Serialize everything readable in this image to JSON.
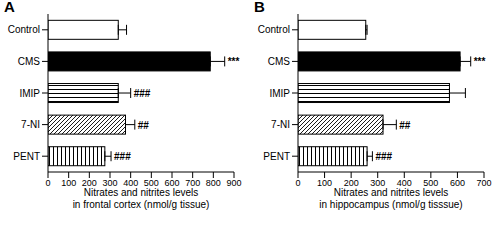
{
  "chart_data": [
    {
      "type": "bar",
      "orientation": "horizontal",
      "title": "A",
      "categories": [
        "Control",
        "CMS",
        "IMIP",
        "7-NI",
        "PENT"
      ],
      "values": [
        340,
        785,
        340,
        375,
        275
      ],
      "errors": [
        40,
        70,
        60,
        45,
        30
      ],
      "annotations": [
        null,
        "***",
        "###",
        "##",
        "###"
      ],
      "colors": [
        "#ffffff",
        "#000000",
        "#ffffff",
        "#ffffff",
        "#ffffff"
      ],
      "xlabel": "Nitrates and nitrites levels\nin frontal cortex (nmol/g tissue)",
      "xlim": [
        0,
        900
      ],
      "xticks": [
        0,
        100,
        200,
        300,
        400,
        500,
        600,
        700,
        800,
        900
      ]
    },
    {
      "type": "bar",
      "orientation": "horizontal",
      "title": "B",
      "categories": [
        "Control",
        "CMS",
        "IMIP",
        "7-NI",
        "PENT"
      ],
      "values": [
        255,
        610,
        570,
        320,
        260
      ],
      "errors": [
        5,
        40,
        60,
        50,
        20
      ],
      "annotations": [
        null,
        "***",
        null,
        "##",
        "###"
      ],
      "colors": [
        "#ffffff",
        "#000000",
        "#ffffff",
        "#ffffff",
        "#ffffff"
      ],
      "xlabel": "Nitrates and nitrites levels\nin hippocampus (nmol/g tisssue)",
      "xlim": [
        0,
        700
      ],
      "xticks": [
        0,
        100,
        200,
        300,
        400,
        500,
        600,
        700
      ]
    }
  ]
}
